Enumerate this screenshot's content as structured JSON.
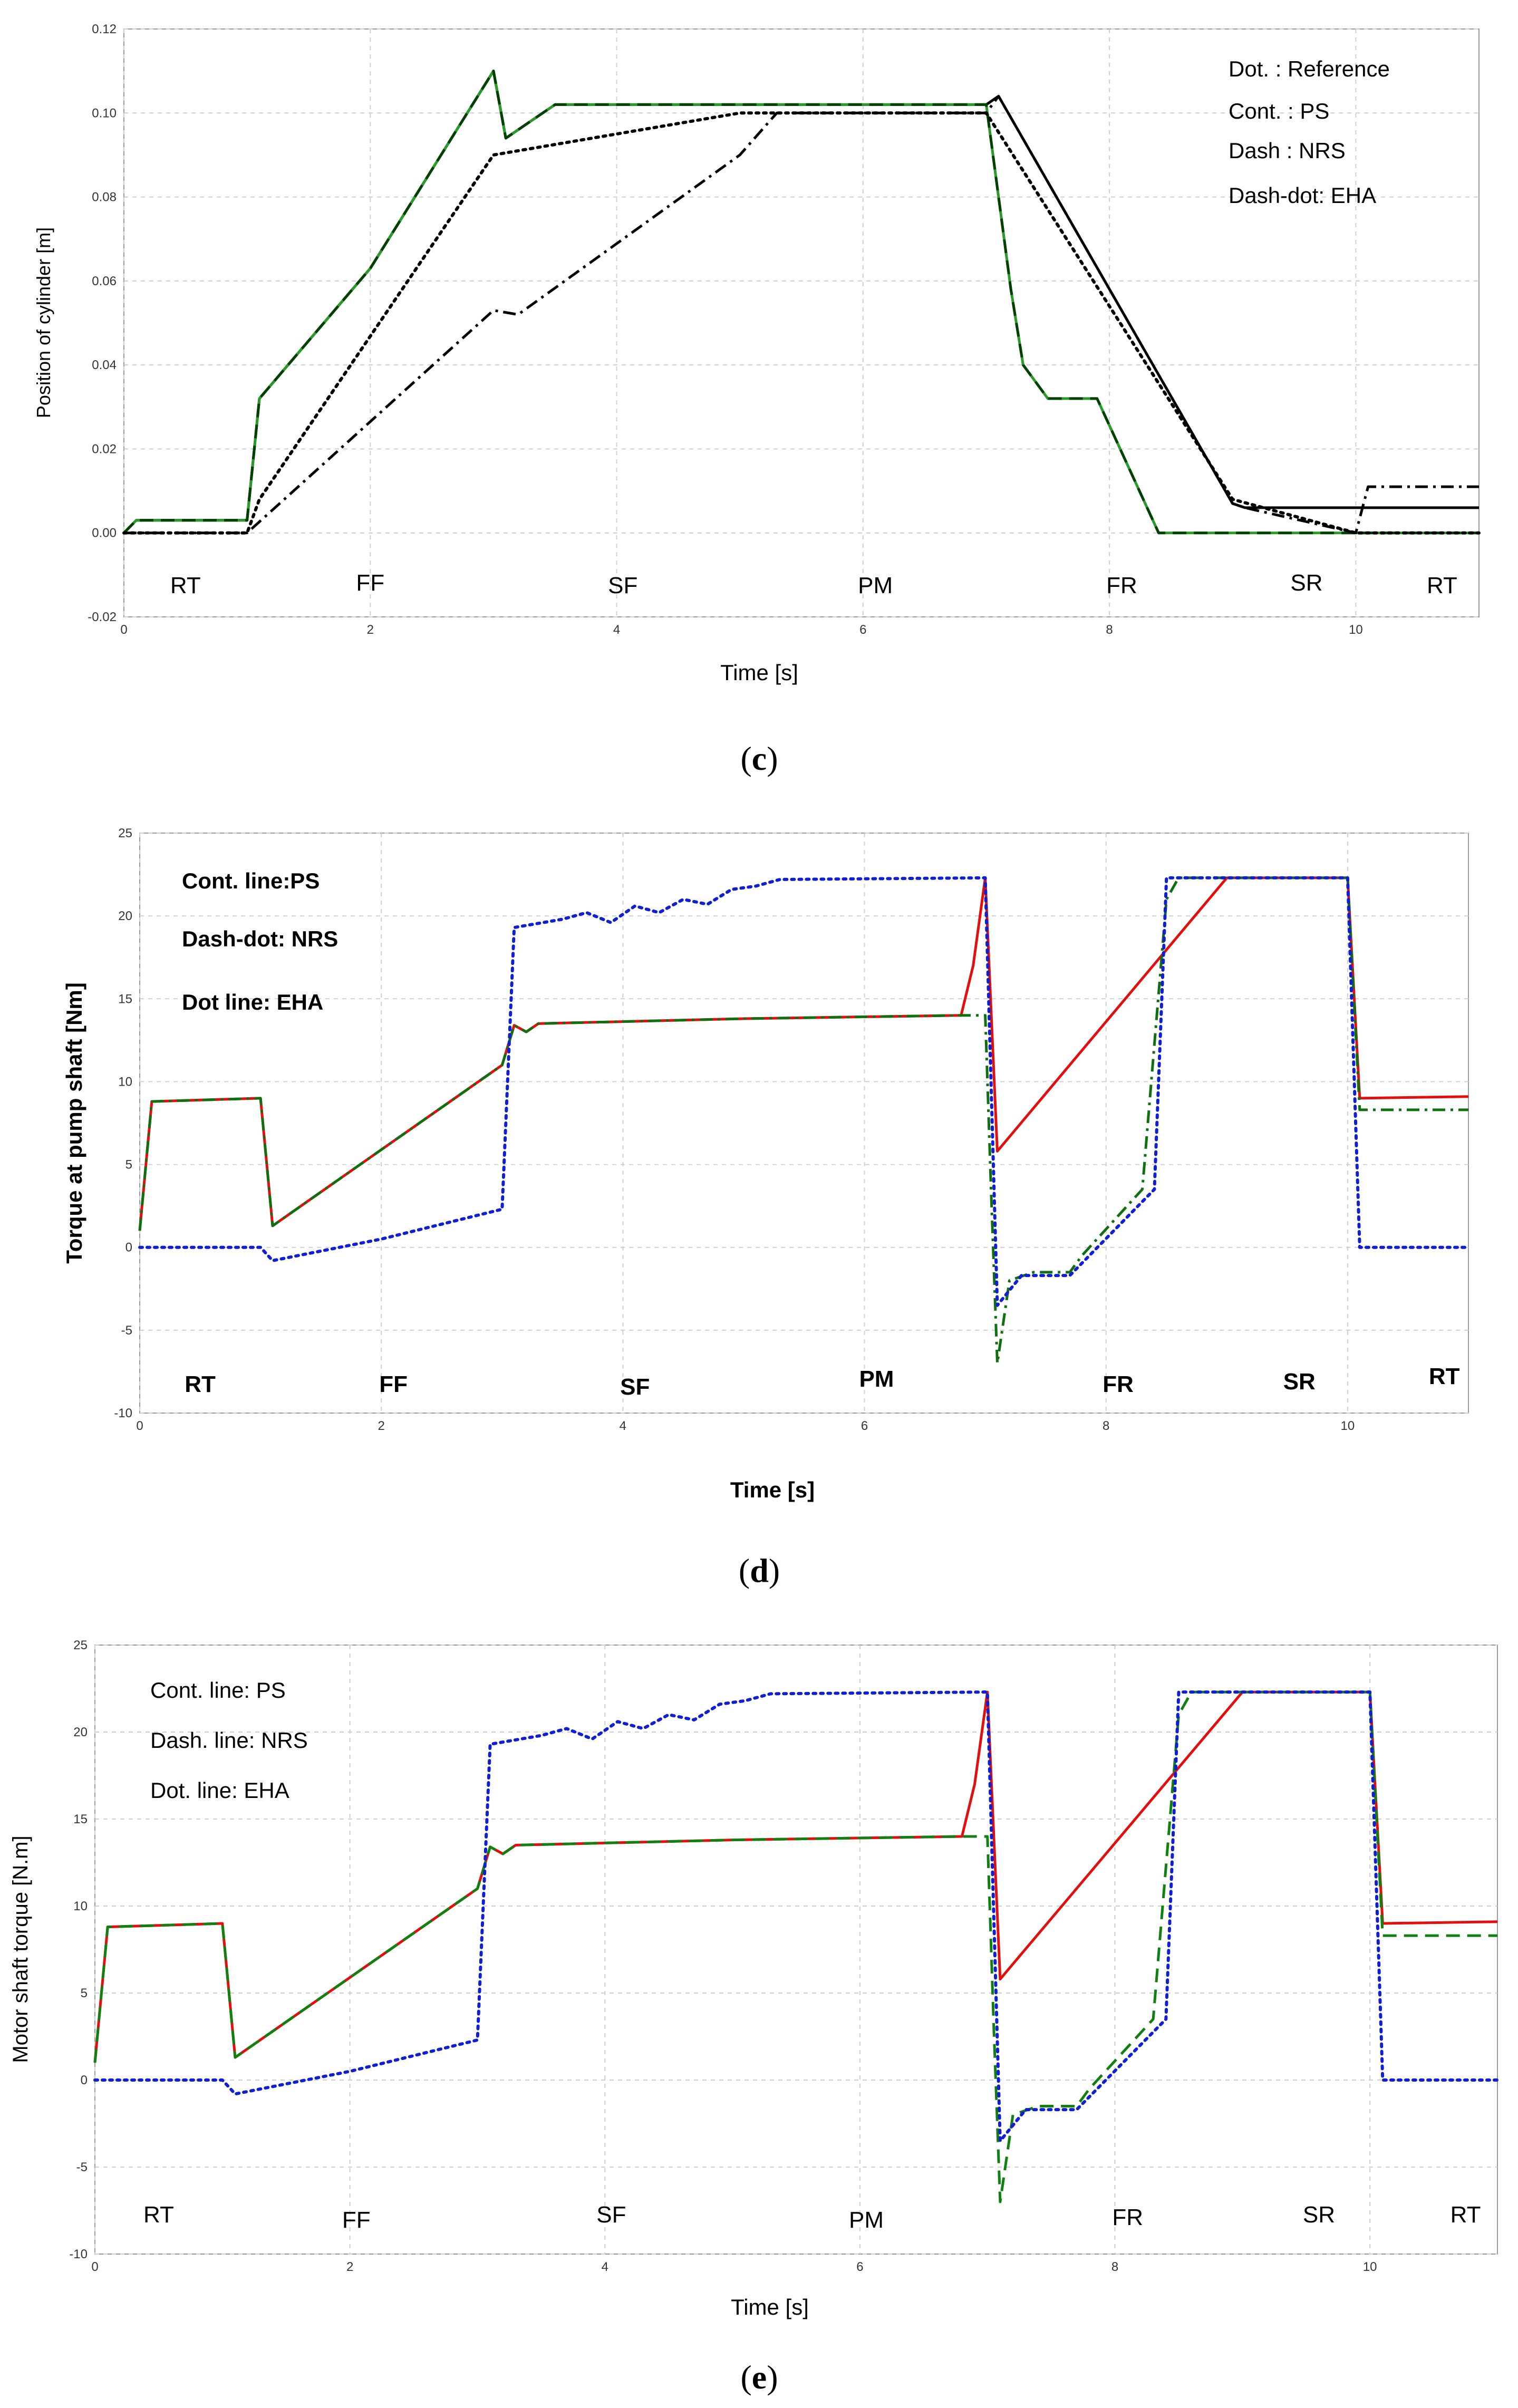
{
  "chart_data": [
    {
      "type": "line",
      "caption_letter": "c",
      "xlabel": "Time [s]",
      "ylabel": "Position of cylinder [m]",
      "xlim": [
        0,
        11
      ],
      "ylim": [
        -0.02,
        0.12
      ],
      "xticks": [
        0,
        2,
        4,
        6,
        8,
        10
      ],
      "yticks": [
        -0.02,
        0,
        0.02,
        0.04,
        0.06,
        0.08,
        0.1,
        0.12
      ],
      "ytick_labels": [
        "-0.02",
        "0.00",
        "0.02",
        "0.04",
        "0.06",
        "0.08",
        "0.10",
        "0.12"
      ],
      "grid": true,
      "legend": [
        "Dot. : Reference",
        "Cont. : PS",
        "Dash : NRS",
        "Dash-dot: EHA"
      ],
      "phases": [
        {
          "label": "RT",
          "x": 0.5
        },
        {
          "label": "FF",
          "x": 2.0
        },
        {
          "label": "SF",
          "x": 4.05
        },
        {
          "label": "PM",
          "x": 6.1
        },
        {
          "label": "FR",
          "x": 8.1
        },
        {
          "label": "SR",
          "x": 9.6
        },
        {
          "label": "RT",
          "x": 10.7
        }
      ],
      "series": [
        {
          "color": "#000000",
          "style": "solid",
          "points": [
            [
              0,
              0
            ],
            [
              0.1,
              0.003
            ],
            [
              1,
              0.003
            ],
            [
              1.1,
              0.032
            ],
            [
              2,
              0.063
            ],
            [
              3,
              0.11
            ],
            [
              3.1,
              0.094
            ],
            [
              3.3,
              0.098
            ],
            [
              3.5,
              0.102
            ],
            [
              7,
              0.102
            ],
            [
              7.1,
              0.104
            ],
            [
              9,
              0.007
            ],
            [
              9.1,
              0.006
            ],
            [
              11,
              0.006
            ]
          ]
        },
        {
          "color": "#2a9a2a",
          "style": "solid",
          "points": [
            [
              0,
              0
            ],
            [
              0.1,
              0.003
            ],
            [
              1,
              0.003
            ],
            [
              1.1,
              0.032
            ],
            [
              2,
              0.063
            ],
            [
              3,
              0.11
            ],
            [
              3.1,
              0.094
            ],
            [
              3.3,
              0.098
            ],
            [
              3.5,
              0.102
            ],
            [
              7,
              0.102
            ],
            [
              7.2,
              0.058
            ],
            [
              7.3,
              0.04
            ],
            [
              7.5,
              0.032
            ],
            [
              7.9,
              0.032
            ],
            [
              8.4,
              0
            ],
            [
              11,
              0
            ]
          ]
        },
        {
          "color": "#004000",
          "style": "dash",
          "points": [
            [
              0,
              0
            ],
            [
              0.1,
              0.003
            ],
            [
              1,
              0.003
            ],
            [
              1.1,
              0.032
            ],
            [
              2,
              0.063
            ],
            [
              3,
              0.11
            ],
            [
              3.1,
              0.094
            ],
            [
              3.3,
              0.098
            ],
            [
              3.5,
              0.102
            ],
            [
              7,
              0.102
            ],
            [
              7.2,
              0.058
            ],
            [
              7.3,
              0.04
            ],
            [
              7.5,
              0.032
            ],
            [
              7.9,
              0.032
            ],
            [
              8.4,
              0
            ],
            [
              11,
              0
            ]
          ]
        },
        {
          "color": "#000000",
          "style": "dot",
          "points": [
            [
              0,
              0
            ],
            [
              1,
              0
            ],
            [
              1.1,
              0.008
            ],
            [
              3,
              0.09
            ],
            [
              5,
              0.1
            ],
            [
              7,
              0.1
            ],
            [
              9,
              0.008
            ],
            [
              10,
              0
            ],
            [
              11,
              0
            ]
          ]
        },
        {
          "color": "#000000",
          "style": "dashdot",
          "points": [
            [
              0,
              0
            ],
            [
              1,
              0
            ],
            [
              3,
              0.053
            ],
            [
              3.2,
              0.052
            ],
            [
              5,
              0.09
            ],
            [
              5.3,
              0.1
            ],
            [
              7,
              0.1
            ],
            [
              7.1,
              0.104
            ],
            [
              9,
              0.007
            ],
            [
              9.1,
              0.006
            ],
            [
              10,
              0
            ],
            [
              10.1,
              0.011
            ],
            [
              11,
              0.011
            ]
          ]
        }
      ]
    },
    {
      "type": "line",
      "caption_letter": "d",
      "xlabel": "Time [s]",
      "ylabel": "Torque at pump shaft [Nm]",
      "xlim": [
        0,
        11
      ],
      "ylim": [
        -10,
        25
      ],
      "xticks": [
        0,
        2,
        4,
        6,
        8,
        10
      ],
      "yticks": [
        -10,
        -5,
        0,
        5,
        10,
        15,
        20,
        25
      ],
      "grid": true,
      "legend": [
        "Cont. line:PS",
        "Dash-dot: NRS",
        "Dot line: EHA"
      ],
      "phases": [
        {
          "label": "RT",
          "x": 0.5
        },
        {
          "label": "FF",
          "x": 2.1
        },
        {
          "label": "SF",
          "x": 4.1
        },
        {
          "label": "PM",
          "x": 6.1
        },
        {
          "label": "FR",
          "x": 8.1
        },
        {
          "label": "SR",
          "x": 9.6
        },
        {
          "label": "RT",
          "x": 10.8
        }
      ],
      "series": [
        {
          "color": "#e01010",
          "style": "solid",
          "points": [
            [
              0,
              1
            ],
            [
              0.1,
              8.8
            ],
            [
              1,
              9
            ],
            [
              1.1,
              1.3
            ],
            [
              3,
              11
            ],
            [
              3.1,
              13.4
            ],
            [
              3.2,
              13
            ],
            [
              3.3,
              13.5
            ],
            [
              5,
              13.8
            ],
            [
              6.8,
              14
            ],
            [
              6.9,
              17
            ],
            [
              7,
              22.3
            ],
            [
              7.1,
              5.8
            ],
            [
              9,
              22.3
            ],
            [
              10,
              22.3
            ],
            [
              10.1,
              9
            ],
            [
              11,
              9.1
            ]
          ]
        },
        {
          "color": "#107010",
          "style": "dashdot",
          "points": [
            [
              0,
              1
            ],
            [
              0.1,
              8.8
            ],
            [
              1,
              9
            ],
            [
              1.1,
              1.3
            ],
            [
              3,
              11
            ],
            [
              3.1,
              13.4
            ],
            [
              3.2,
              13
            ],
            [
              3.3,
              13.5
            ],
            [
              5,
              13.8
            ],
            [
              6.8,
              14
            ],
            [
              7,
              14
            ],
            [
              7.05,
              3
            ],
            [
              7.1,
              -7
            ],
            [
              7.2,
              -2
            ],
            [
              7.4,
              -1.5
            ],
            [
              7.7,
              -1.5
            ],
            [
              7.8,
              -0.5
            ],
            [
              8.3,
              3.5
            ],
            [
              8.5,
              21
            ],
            [
              8.6,
              22.3
            ],
            [
              10,
              22.3
            ],
            [
              10.1,
              8.3
            ],
            [
              11,
              8.3
            ]
          ]
        },
        {
          "color": "#1020d0",
          "style": "dot",
          "points": [
            [
              0,
              0
            ],
            [
              1,
              0
            ],
            [
              1.1,
              -0.8
            ],
            [
              2,
              0.5
            ],
            [
              3,
              2.3
            ],
            [
              3.1,
              19.3
            ],
            [
              3.5,
              19.8
            ],
            [
              3.7,
              20.2
            ],
            [
              3.9,
              19.6
            ],
            [
              4.1,
              20.6
            ],
            [
              4.3,
              20.2
            ],
            [
              4.5,
              21
            ],
            [
              4.7,
              20.7
            ],
            [
              4.9,
              21.6
            ],
            [
              5.1,
              21.8
            ],
            [
              5.3,
              22.2
            ],
            [
              7,
              22.3
            ],
            [
              7.1,
              -3.5
            ],
            [
              7.3,
              -1.7
            ],
            [
              7.7,
              -1.7
            ],
            [
              8.4,
              3.5
            ],
            [
              8.5,
              22.3
            ],
            [
              10,
              22.3
            ],
            [
              10.1,
              0
            ],
            [
              11,
              0
            ]
          ]
        }
      ]
    },
    {
      "type": "line",
      "caption_letter": "e",
      "xlabel": "Time [s]",
      "ylabel": "Motor shaft torque [N.m]",
      "xlim": [
        0,
        11
      ],
      "ylim": [
        -10,
        25
      ],
      "xticks": [
        0,
        2,
        4,
        6,
        8,
        10
      ],
      "yticks": [
        -10,
        -5,
        0,
        5,
        10,
        15,
        20,
        25
      ],
      "grid": true,
      "legend": [
        "Cont. line: PS",
        "Dash. line: NRS",
        "Dot. line: EHA"
      ],
      "phases": [
        {
          "label": "RT",
          "x": 0.5
        },
        {
          "label": "FF",
          "x": 2.05
        },
        {
          "label": "SF",
          "x": 4.05
        },
        {
          "label": "PM",
          "x": 6.05
        },
        {
          "label": "FR",
          "x": 8.1
        },
        {
          "label": "SR",
          "x": 9.6
        },
        {
          "label": "RT",
          "x": 10.75
        }
      ],
      "series": [
        {
          "color": "#e01010",
          "style": "solid",
          "points": [
            [
              0,
              1
            ],
            [
              0.1,
              8.8
            ],
            [
              1,
              9
            ],
            [
              1.1,
              1.3
            ],
            [
              3,
              11
            ],
            [
              3.1,
              13.4
            ],
            [
              3.2,
              13
            ],
            [
              3.3,
              13.5
            ],
            [
              5,
              13.8
            ],
            [
              6.8,
              14
            ],
            [
              6.9,
              17
            ],
            [
              7,
              22.3
            ],
            [
              7.1,
              5.8
            ],
            [
              9,
              22.3
            ],
            [
              10,
              22.3
            ],
            [
              10.1,
              9
            ],
            [
              11,
              9.1
            ]
          ]
        },
        {
          "color": "#108010",
          "style": "dash",
          "points": [
            [
              0,
              1
            ],
            [
              0.1,
              8.8
            ],
            [
              1,
              9
            ],
            [
              1.1,
              1.3
            ],
            [
              3,
              11
            ],
            [
              3.1,
              13.4
            ],
            [
              3.2,
              13
            ],
            [
              3.3,
              13.5
            ],
            [
              5,
              13.8
            ],
            [
              6.8,
              14
            ],
            [
              7,
              14
            ],
            [
              7.05,
              3
            ],
            [
              7.1,
              -7
            ],
            [
              7.2,
              -2
            ],
            [
              7.4,
              -1.5
            ],
            [
              7.7,
              -1.5
            ],
            [
              7.8,
              -0.5
            ],
            [
              8.3,
              3.5
            ],
            [
              8.5,
              21
            ],
            [
              8.6,
              22.3
            ],
            [
              10,
              22.3
            ],
            [
              10.1,
              8.3
            ],
            [
              11,
              8.3
            ]
          ]
        },
        {
          "color": "#1020d0",
          "style": "dot",
          "points": [
            [
              0,
              0
            ],
            [
              1,
              0
            ],
            [
              1.1,
              -0.8
            ],
            [
              2,
              0.5
            ],
            [
              3,
              2.3
            ],
            [
              3.1,
              19.3
            ],
            [
              3.5,
              19.8
            ],
            [
              3.7,
              20.2
            ],
            [
              3.9,
              19.6
            ],
            [
              4.1,
              20.6
            ],
            [
              4.3,
              20.2
            ],
            [
              4.5,
              21
            ],
            [
              4.7,
              20.7
            ],
            [
              4.9,
              21.6
            ],
            [
              5.1,
              21.8
            ],
            [
              5.3,
              22.2
            ],
            [
              7,
              22.3
            ],
            [
              7.1,
              -3.5
            ],
            [
              7.3,
              -1.7
            ],
            [
              7.7,
              -1.7
            ],
            [
              8.4,
              3.5
            ],
            [
              8.5,
              22.3
            ],
            [
              10,
              22.3
            ],
            [
              10.1,
              0
            ],
            [
              11,
              0
            ]
          ]
        }
      ]
    }
  ]
}
